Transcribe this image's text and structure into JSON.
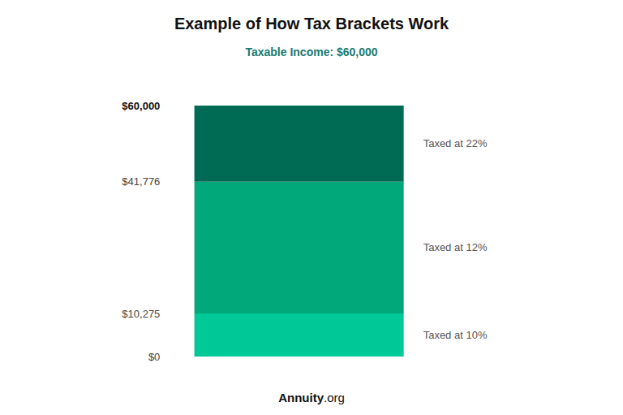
{
  "chart_data": {
    "type": "bar",
    "title": "Example of How Tax Brackets Work",
    "subtitle": "Taxable Income: $60,000",
    "footer": [
      "Annuity",
      ".org"
    ],
    "categories": [
      null
    ],
    "stacked": true,
    "series": [
      {
        "name": "Taxed at 10%",
        "color": "#00C897",
        "values": [
          10275
        ]
      },
      {
        "name": "Taxed at 12%",
        "color": "#00A87A",
        "values": [
          31501
        ]
      },
      {
        "name": "Taxed at 22%",
        "color": "#006B54",
        "values": [
          18224
        ]
      }
    ],
    "ylim": [
      0,
      60000
    ],
    "yticks": [
      {
        "value": 0,
        "label": "$0"
      },
      {
        "value": 10275,
        "label": "$10,275"
      },
      {
        "value": 41776,
        "label": "$41,776"
      },
      {
        "value": 60000,
        "label": "$60,000"
      }
    ],
    "grid": false,
    "tick_labels": "y"
  }
}
